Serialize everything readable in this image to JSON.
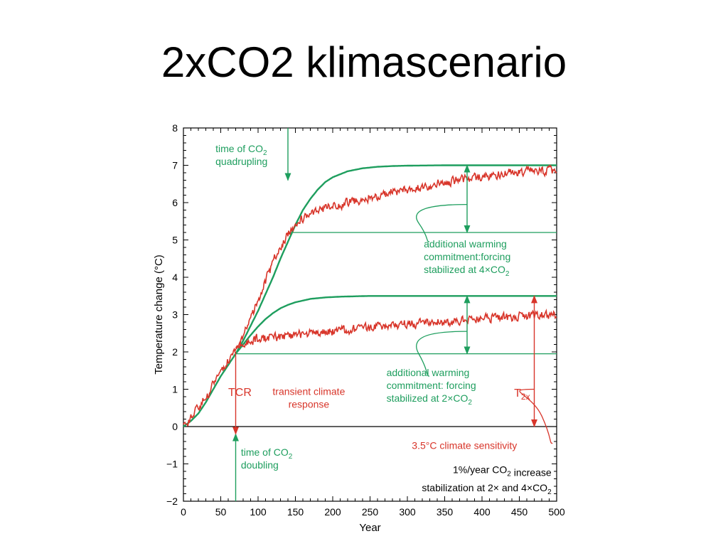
{
  "slide": {
    "title": "2xCO2 klimascenario"
  },
  "colors": {
    "green": "#1e9e5e",
    "red": "#d8352a",
    "black": "#000000"
  },
  "chart_data": {
    "type": "line",
    "xlabel": "Year",
    "ylabel": "Temperature change (°C)",
    "xlim": [
      0,
      500
    ],
    "ylim": [
      -2,
      8
    ],
    "xticks": [
      "0",
      "50",
      "100",
      "150",
      "200",
      "250",
      "300",
      "350",
      "400",
      "450",
      "500"
    ],
    "yticks": [
      "−2",
      "−1",
      "0",
      "1",
      "2",
      "3",
      "4",
      "5",
      "6",
      "7",
      "8"
    ],
    "grid": false,
    "curves": [
      {
        "color": "green",
        "kind": "smooth",
        "x": [
          0,
          10,
          20,
          30,
          40,
          50,
          60,
          70,
          80,
          90,
          100,
          110,
          120,
          130,
          140,
          150,
          160,
          170,
          180,
          190,
          200,
          220,
          240,
          260,
          280,
          300,
          350,
          400,
          450,
          500
        ],
        "y": [
          0,
          0.15,
          0.35,
          0.65,
          1.0,
          1.35,
          1.65,
          1.95,
          2.3,
          2.7,
          3.1,
          3.55,
          4.0,
          4.5,
          4.95,
          5.4,
          5.8,
          6.1,
          6.35,
          6.55,
          6.68,
          6.84,
          6.92,
          6.96,
          6.98,
          6.99,
          7.0,
          7.0,
          7.0,
          7.0
        ]
      },
      {
        "color": "green",
        "kind": "smooth",
        "x": [
          70,
          80,
          90,
          100,
          110,
          120,
          130,
          140,
          150,
          170,
          190,
          210,
          230,
          250,
          300,
          350,
          400,
          450,
          500
        ],
        "y": [
          1.95,
          2.2,
          2.45,
          2.68,
          2.88,
          3.04,
          3.17,
          3.26,
          3.33,
          3.42,
          3.46,
          3.48,
          3.49,
          3.5,
          3.5,
          3.5,
          3.5,
          3.5,
          3.5
        ]
      },
      {
        "color": "red",
        "kind": "noisy",
        "x": [
          0,
          5,
          10,
          20,
          30,
          40,
          50,
          60,
          70,
          80,
          90,
          100,
          110,
          120,
          130,
          140,
          150,
          160,
          180,
          200,
          220,
          250,
          300,
          350,
          400,
          450,
          500
        ],
        "y": [
          0,
          -0.1,
          0.3,
          0.55,
          0.75,
          1.1,
          1.45,
          1.75,
          2.0,
          2.4,
          2.9,
          3.4,
          3.9,
          4.4,
          4.85,
          5.15,
          5.45,
          5.55,
          5.75,
          5.9,
          6.0,
          6.15,
          6.35,
          6.55,
          6.7,
          6.82,
          6.85
        ]
      },
      {
        "color": "red",
        "kind": "noisy",
        "x": [
          70,
          80,
          90,
          100,
          120,
          150,
          200,
          250,
          300,
          350,
          400,
          450,
          500
        ],
        "y": [
          2.0,
          2.2,
          2.3,
          2.35,
          2.4,
          2.45,
          2.55,
          2.65,
          2.75,
          2.8,
          2.9,
          2.95,
          3.0
        ]
      }
    ],
    "hlines": [
      {
        "y": 5.2,
        "x0": 140,
        "x1": 500,
        "color": "green"
      },
      {
        "y": 1.95,
        "x0": 70,
        "x1": 500,
        "color": "green"
      }
    ],
    "arrows": [
      {
        "x": 140,
        "y0": 8,
        "y1": 6.6,
        "color": "green",
        "heads": "end"
      },
      {
        "x": 70,
        "y0": -2,
        "y1": -0.2,
        "color": "green",
        "heads": "end"
      },
      {
        "x": 70,
        "y0": 2.0,
        "y1": -0.2,
        "color": "red",
        "heads": "end"
      },
      {
        "x": 380,
        "y0": 5.2,
        "y1": 7.0,
        "color": "green",
        "heads": "both"
      },
      {
        "x": 380,
        "y0": 1.95,
        "y1": 3.5,
        "color": "green",
        "heads": "both"
      },
      {
        "x": 470,
        "y0": 0,
        "y1": 3.5,
        "color": "red",
        "heads": "both"
      }
    ],
    "brackets": [
      {
        "xa": 380,
        "ya": 5.95,
        "xb": 320,
        "yb": 4.95,
        "color": "green"
      },
      {
        "xa": 380,
        "ya": 2.55,
        "xb": 320,
        "yb": 1.35,
        "color": "green"
      },
      {
        "xa": 470,
        "ya": 1.0,
        "xb": 485,
        "yb": -0.45,
        "color": "red"
      }
    ],
    "annotations": [
      {
        "lines": [
          [
            "time of CO",
            {
              "sub": "2"
            }
          ],
          [
            "quadrupling"
          ]
        ],
        "x": 43,
        "y": 7.35,
        "anchor": "start",
        "color": "green",
        "size": 14
      },
      {
        "lines": [
          [
            "additional warming"
          ],
          [
            "commitment:forcing"
          ],
          [
            "stabilized at 4×CO",
            {
              "sub": "2"
            }
          ]
        ],
        "x": 322,
        "y": 4.8,
        "anchor": "start",
        "color": "green",
        "size": 14
      },
      {
        "lines": [
          [
            "additional warming"
          ],
          [
            "commitment: forcing"
          ],
          [
            "stabilized at 2×CO",
            {
              "sub": "2"
            }
          ]
        ],
        "x": 272,
        "y": 1.35,
        "anchor": "start",
        "color": "green",
        "size": 14
      },
      {
        "lines": [
          [
            "TCR"
          ]
        ],
        "x": 60,
        "y": 0.82,
        "anchor": "start",
        "color": "red",
        "size": 16
      },
      {
        "lines": [
          [
            "transient climate"
          ],
          [
            "response"
          ]
        ],
        "x": 168,
        "y": 0.85,
        "anchor": "middle",
        "color": "red",
        "size": 14
      },
      {
        "lines": [
          [
            "T",
            {
              "sub": "2x"
            }
          ]
        ],
        "x": 443,
        "y": 0.8,
        "anchor": "start",
        "color": "red",
        "size": 16
      },
      {
        "lines": [
          [
            "3.5°C climate sensitivity"
          ]
        ],
        "x": 306,
        "y": -0.6,
        "anchor": "start",
        "color": "red",
        "size": 14
      },
      {
        "lines": [
          [
            "time of CO",
            {
              "sub": "2"
            }
          ],
          [
            "doubling"
          ]
        ],
        "x": 77,
        "y": -0.78,
        "anchor": "start",
        "color": "green",
        "size": 14
      },
      {
        "lines": [
          [
            "1%/year CO",
            {
              "sub": "2"
            },
            " increase"
          ]
        ],
        "x": 493,
        "y": -1.25,
        "anchor": "end",
        "color": "black",
        "size": 14
      },
      {
        "lines": [
          [
            "stabilization at 2× and 4×CO",
            {
              "sub": "2"
            }
          ]
        ],
        "x": 493,
        "y": -1.73,
        "anchor": "end",
        "color": "black",
        "size": 14
      }
    ]
  }
}
